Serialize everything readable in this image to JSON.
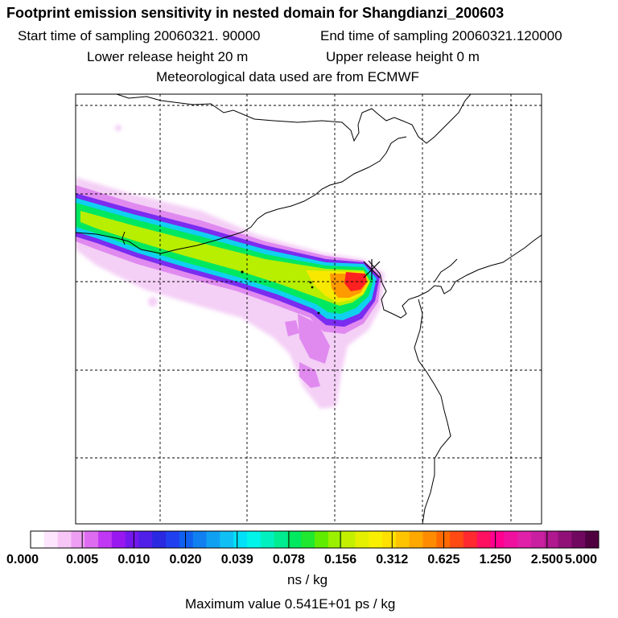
{
  "header": {
    "title": "Footprint emission sensitivity in nested domain for Shangdianzi_200603",
    "start_time": "Start time of sampling 20060321. 90000",
    "end_time": "End time of sampling 20060321.120000",
    "lower_release": "Lower release height   20 m",
    "upper_release": "Upper release height    0 m",
    "met_data": "Meteorological data used are from ECMWF"
  },
  "colorbar": {
    "tick_labels": [
      "0.000",
      "0.005",
      "0.010",
      "0.020",
      "0.039",
      "0.078",
      "0.156",
      "0.312",
      "0.625",
      "1.250",
      "2.500",
      "5.000"
    ],
    "colors": [
      "#ffffff",
      "#fde6fd",
      "#f7c6f7",
      "#ee9ef3",
      "#dd6cf0",
      "#c038f3",
      "#9a18f0",
      "#7418ee",
      "#5020e8",
      "#2a28e0",
      "#2040f0",
      "#1060f0",
      "#1080f0",
      "#10a0f2",
      "#10c0f4",
      "#00e0f8",
      "#00f4ea",
      "#00f0c0",
      "#00ec90",
      "#00e860",
      "#20e830",
      "#60ec00",
      "#9af000",
      "#c4f000",
      "#e4f000",
      "#f8f000",
      "#ffe000",
      "#ffc400",
      "#ffa800",
      "#ff8c00",
      "#ff6a00",
      "#ff4a14",
      "#ff2a30",
      "#ff1060",
      "#ff0090",
      "#f010a0",
      "#e020a8",
      "#c820a0",
      "#b01890",
      "#901078",
      "#700860",
      "#500040"
    ],
    "unit": "ns / kg",
    "max_value": "Maximum value  0.541E+01 ps / kg"
  }
}
